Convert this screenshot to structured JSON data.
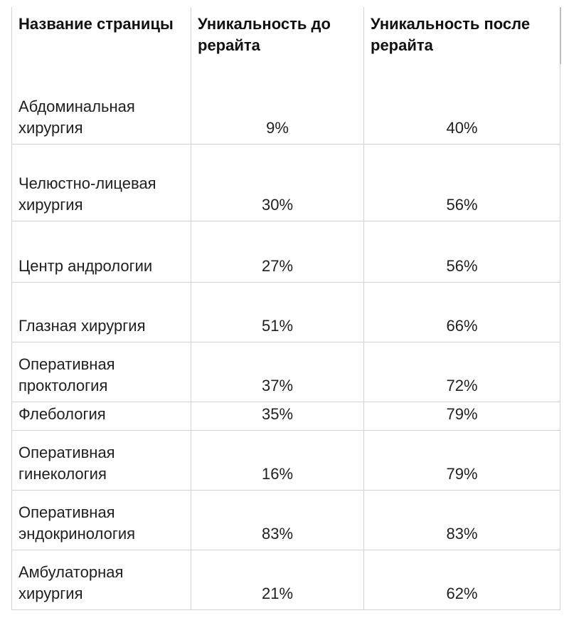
{
  "table": {
    "headers": [
      "Название страницы",
      "Уникальность до рерайта",
      "Уникальность после рерайта"
    ],
    "rows": [
      {
        "name": "Абдоминальная хирургия",
        "before": "9%",
        "after": "40%"
      },
      {
        "name": "Челюстно-лицевая хирургия",
        "before": "30%",
        "after": "56%"
      },
      {
        "name": "Центр андрологии",
        "before": "27%",
        "after": "56%"
      },
      {
        "name": "Глазная хирургия",
        "before": "51%",
        "after": "66%"
      },
      {
        "name": "Оперативная проктология",
        "before": "37%",
        "after": "72%"
      },
      {
        "name": "Флебология",
        "before": "35%",
        "after": "79%"
      },
      {
        "name": "Оперативная гинекология",
        "before": "16%",
        "after": "79%"
      },
      {
        "name": "Оперативная эндокринология",
        "before": "83%",
        "after": "83%"
      },
      {
        "name": "Амбулаторная хирургия",
        "before": "21%",
        "after": "62%"
      }
    ]
  }
}
